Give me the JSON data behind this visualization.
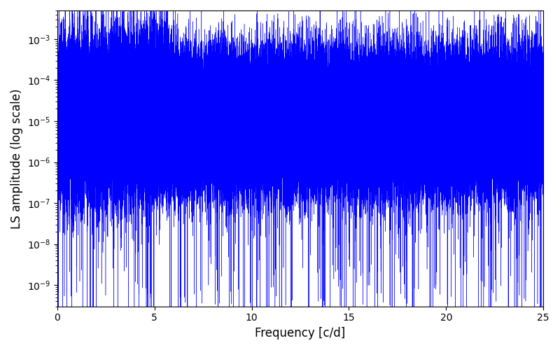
{
  "title": "",
  "xlabel": "Frequency [c/d]",
  "ylabel": "LS amplitude (log scale)",
  "xlim": [
    0,
    25
  ],
  "ylim": [
    3e-10,
    0.005
  ],
  "xticks": [
    0,
    5,
    10,
    15,
    20,
    25
  ],
  "line_color": "#0000FF",
  "background_color": "#ffffff",
  "freq_max": 25.0,
  "n_points": 100000,
  "seed": 12345,
  "figsize": [
    8.0,
    5.0
  ],
  "dpi": 100
}
